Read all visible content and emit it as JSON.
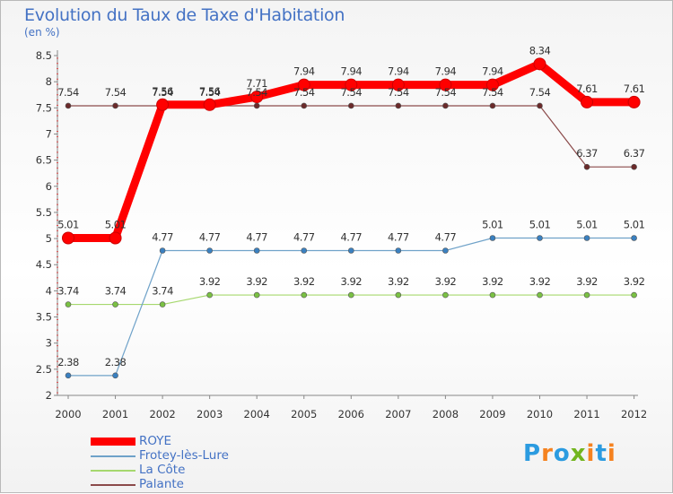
{
  "header": {
    "title": "Evolution du Taux de Taxe d'Habitation",
    "subtitle": "(en %)"
  },
  "logo": {
    "text": "Proxiti",
    "letters": [
      "P",
      "r",
      "o",
      "x",
      "i",
      "t",
      "i"
    ],
    "colors": [
      "#2b9be0",
      "#f5821f",
      "#2b9be0",
      "#72b51e",
      "#f5821f",
      "#2b9be0",
      "#f5821f"
    ]
  },
  "chart_data": {
    "type": "line",
    "title": "Evolution du Taux de Taxe d'Habitation",
    "ylabel": "(en %)",
    "xlabel": "",
    "categories": [
      "2000",
      "2001",
      "2002",
      "2003",
      "2004",
      "2005",
      "2006",
      "2007",
      "2008",
      "2009",
      "2010",
      "2011",
      "2012"
    ],
    "ylim": [
      2,
      8.5
    ],
    "yticks": [
      "2",
      "2.5",
      "3",
      "3.5",
      "4",
      "4.5",
      "5",
      "5.5",
      "6",
      "6.5",
      "7",
      "7.5",
      "8",
      "8.5"
    ],
    "grid": false,
    "legend_position": "bottom-left",
    "series": [
      {
        "name": "ROYE",
        "color": "#ff0000",
        "marker_color": "#ff0000",
        "emphasis": "thick",
        "values": [
          5.01,
          5.01,
          7.56,
          7.56,
          7.71,
          7.94,
          7.94,
          7.94,
          7.94,
          7.94,
          8.34,
          7.61,
          7.61
        ],
        "labels": [
          "5.01",
          "5.01",
          "7.56",
          "7.56",
          "7.71",
          "7.94",
          "7.94",
          "7.94",
          "7.94",
          "7.94",
          "8.34",
          "7.61",
          "7.61"
        ]
      },
      {
        "name": "Frotey-lès-Lure",
        "color": "#6fa2c9",
        "marker_color": "#3a80c0",
        "emphasis": "thin",
        "values": [
          2.38,
          2.38,
          4.77,
          4.77,
          4.77,
          4.77,
          4.77,
          4.77,
          4.77,
          5.01,
          5.01,
          5.01,
          5.01
        ],
        "labels": [
          "2.38",
          "2.38",
          "4.77",
          "4.77",
          "4.77",
          "4.77",
          "4.77",
          "4.77",
          "4.77",
          "5.01",
          "5.01",
          "5.01",
          "5.01"
        ]
      },
      {
        "name": "La Côte",
        "color": "#a6d86e",
        "marker_color": "#7ac143",
        "emphasis": "thin",
        "values": [
          3.74,
          3.74,
          3.74,
          3.92,
          3.92,
          3.92,
          3.92,
          3.92,
          3.92,
          3.92,
          3.92,
          3.92,
          3.92
        ],
        "labels": [
          "3.74",
          "3.74",
          "3.74",
          "3.92",
          "3.92",
          "3.92",
          "3.92",
          "3.92",
          "3.92",
          "3.92",
          "3.92",
          "3.92",
          "3.92"
        ]
      },
      {
        "name": "Palante",
        "color": "#8b4a4a",
        "marker_color": "#6b2a2a",
        "emphasis": "thin",
        "values": [
          7.54,
          7.54,
          7.54,
          7.54,
          7.54,
          7.54,
          7.54,
          7.54,
          7.54,
          7.54,
          7.54,
          6.37,
          6.37
        ],
        "labels": [
          "7.54",
          "7.54",
          "7.54",
          "7.54",
          "7.54",
          "7.54",
          "7.54",
          "7.54",
          "7.54",
          "7.54",
          "7.54",
          "6.37",
          "6.37"
        ]
      }
    ]
  }
}
